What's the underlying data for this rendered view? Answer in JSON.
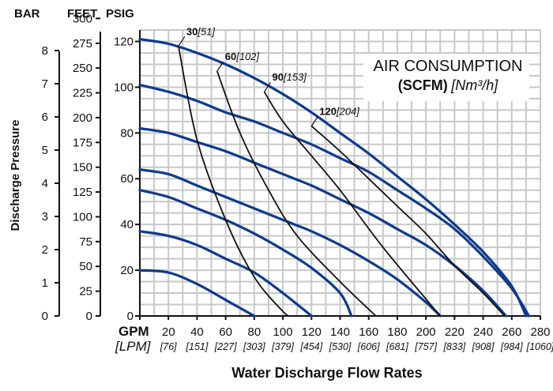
{
  "axes_headers": {
    "bar": "BAR",
    "feet": "FEET",
    "psig": "PSIG"
  },
  "title": {
    "line1": "AIR CONSUMPTION",
    "line2_bold": "(SCFM)",
    "line2_italic": "[Nm³/h]"
  },
  "x_axis": {
    "gpm_label": "GPM",
    "lpm_label": "[LPM]",
    "title": "Water Discharge Flow Rates",
    "gpm_ticks": [
      "0",
      "20",
      "40",
      "60",
      "80",
      "100",
      "120",
      "140",
      "160",
      "180",
      "200",
      "220",
      "240",
      "260",
      "280"
    ],
    "lpm_ticks": [
      "[76]",
      "[151]",
      "[227]",
      "[303]",
      "[379]",
      "[454]",
      "[530]",
      "[606]",
      "[681]",
      "[757]",
      "[833]",
      "[908]",
      "[984]",
      "[1060]"
    ]
  },
  "y_axis": {
    "title": "Discharge Pressure",
    "psig_ticks": [
      "0",
      "20",
      "40",
      "60",
      "80",
      "100",
      "120"
    ],
    "feet_ticks": [
      "0",
      "25",
      "50",
      "75",
      "100",
      "125",
      "150",
      "175",
      "200",
      "225",
      "250",
      "275",
      "300"
    ],
    "bar_ticks": [
      "0",
      "1",
      "2",
      "3",
      "4",
      "5",
      "6",
      "7",
      "8"
    ]
  },
  "colors": {
    "performance_curve": "#0d3b8c",
    "air_curve": "#111111",
    "grid": "#c8c8c8",
    "ink": "#111111"
  },
  "chart_data": {
    "type": "line",
    "title": "AIR CONSUMPTION (SCFM) [Nm³/h]",
    "xlabel": "Water Discharge Flow Rates",
    "ylabel": "Discharge Pressure",
    "x_unit": "GPM",
    "y_unit": "PSIG",
    "xlim": [
      0,
      280
    ],
    "ylim": [
      0,
      125
    ],
    "grid": true,
    "series": [
      {
        "group": "performance",
        "values": [
          [
            0,
            20
          ],
          [
            20,
            19
          ],
          [
            40,
            14
          ],
          [
            60,
            7
          ],
          [
            80,
            0
          ]
        ]
      },
      {
        "group": "performance",
        "values": [
          [
            0,
            37
          ],
          [
            20,
            35
          ],
          [
            40,
            31
          ],
          [
            60,
            25
          ],
          [
            80,
            19
          ],
          [
            100,
            10
          ],
          [
            120,
            0
          ]
        ]
      },
      {
        "group": "performance",
        "values": [
          [
            0,
            55
          ],
          [
            20,
            52
          ],
          [
            40,
            47
          ],
          [
            60,
            42
          ],
          [
            80,
            36
          ],
          [
            100,
            29
          ],
          [
            120,
            21
          ],
          [
            140,
            10
          ],
          [
            148,
            0
          ]
        ]
      },
      {
        "group": "performance",
        "values": [
          [
            0,
            64
          ],
          [
            20,
            62
          ],
          [
            40,
            57
          ],
          [
            60,
            52
          ],
          [
            80,
            47
          ],
          [
            100,
            42
          ],
          [
            120,
            37
          ],
          [
            140,
            31
          ],
          [
            160,
            24
          ],
          [
            180,
            16
          ],
          [
            200,
            6
          ],
          [
            210,
            0
          ]
        ]
      },
      {
        "group": "performance",
        "values": [
          [
            0,
            82
          ],
          [
            20,
            80
          ],
          [
            40,
            76
          ],
          [
            60,
            72
          ],
          [
            80,
            67
          ],
          [
            100,
            62
          ],
          [
            120,
            57
          ],
          [
            140,
            51
          ],
          [
            160,
            45
          ],
          [
            180,
            38
          ],
          [
            200,
            31
          ],
          [
            220,
            22
          ],
          [
            240,
            11
          ],
          [
            256,
            0
          ]
        ]
      },
      {
        "group": "performance",
        "values": [
          [
            0,
            101
          ],
          [
            20,
            98
          ],
          [
            40,
            94
          ],
          [
            60,
            89
          ],
          [
            80,
            85
          ],
          [
            100,
            80
          ],
          [
            120,
            75
          ],
          [
            140,
            69
          ],
          [
            160,
            63
          ],
          [
            180,
            55
          ],
          [
            200,
            47
          ],
          [
            220,
            38
          ],
          [
            240,
            26
          ],
          [
            260,
            12
          ],
          [
            272,
            0
          ]
        ]
      },
      {
        "group": "performance",
        "values": [
          [
            0,
            121
          ],
          [
            20,
            119
          ],
          [
            40,
            115
          ],
          [
            60,
            110
          ],
          [
            80,
            104
          ],
          [
            100,
            97
          ],
          [
            120,
            89
          ],
          [
            140,
            80
          ],
          [
            160,
            71
          ],
          [
            180,
            61
          ],
          [
            200,
            51
          ],
          [
            220,
            40
          ],
          [
            240,
            28
          ],
          [
            260,
            13
          ],
          [
            270,
            0
          ]
        ]
      },
      {
        "group": "air",
        "name": "30",
        "label_bold": "30",
        "label_italic": "[51]",
        "values": [
          [
            27,
            118
          ],
          [
            40,
            77
          ],
          [
            60,
            42
          ],
          [
            80,
            17
          ],
          [
            100,
            2
          ],
          [
            105,
            0
          ]
        ]
      },
      {
        "group": "air",
        "name": "60",
        "label_bold": "60",
        "label_italic": "[102]",
        "values": [
          [
            54,
            107
          ],
          [
            70,
            80
          ],
          [
            90,
            55
          ],
          [
            110,
            35
          ],
          [
            140,
            15
          ],
          [
            165,
            0
          ]
        ]
      },
      {
        "group": "air",
        "name": "90",
        "label_bold": "90",
        "label_italic": "[153]",
        "values": [
          [
            87,
            98
          ],
          [
            100,
            85
          ],
          [
            120,
            70
          ],
          [
            140,
            55
          ],
          [
            170,
            30
          ],
          [
            210,
            0
          ]
        ]
      },
      {
        "group": "air",
        "name": "120",
        "label_bold": "120",
        "label_italic": "[204]",
        "values": [
          [
            120,
            83
          ],
          [
            140,
            72
          ],
          [
            160,
            60
          ],
          [
            180,
            48
          ],
          [
            200,
            36
          ],
          [
            220,
            22
          ],
          [
            240,
            10
          ],
          [
            255,
            0
          ]
        ]
      }
    ]
  }
}
